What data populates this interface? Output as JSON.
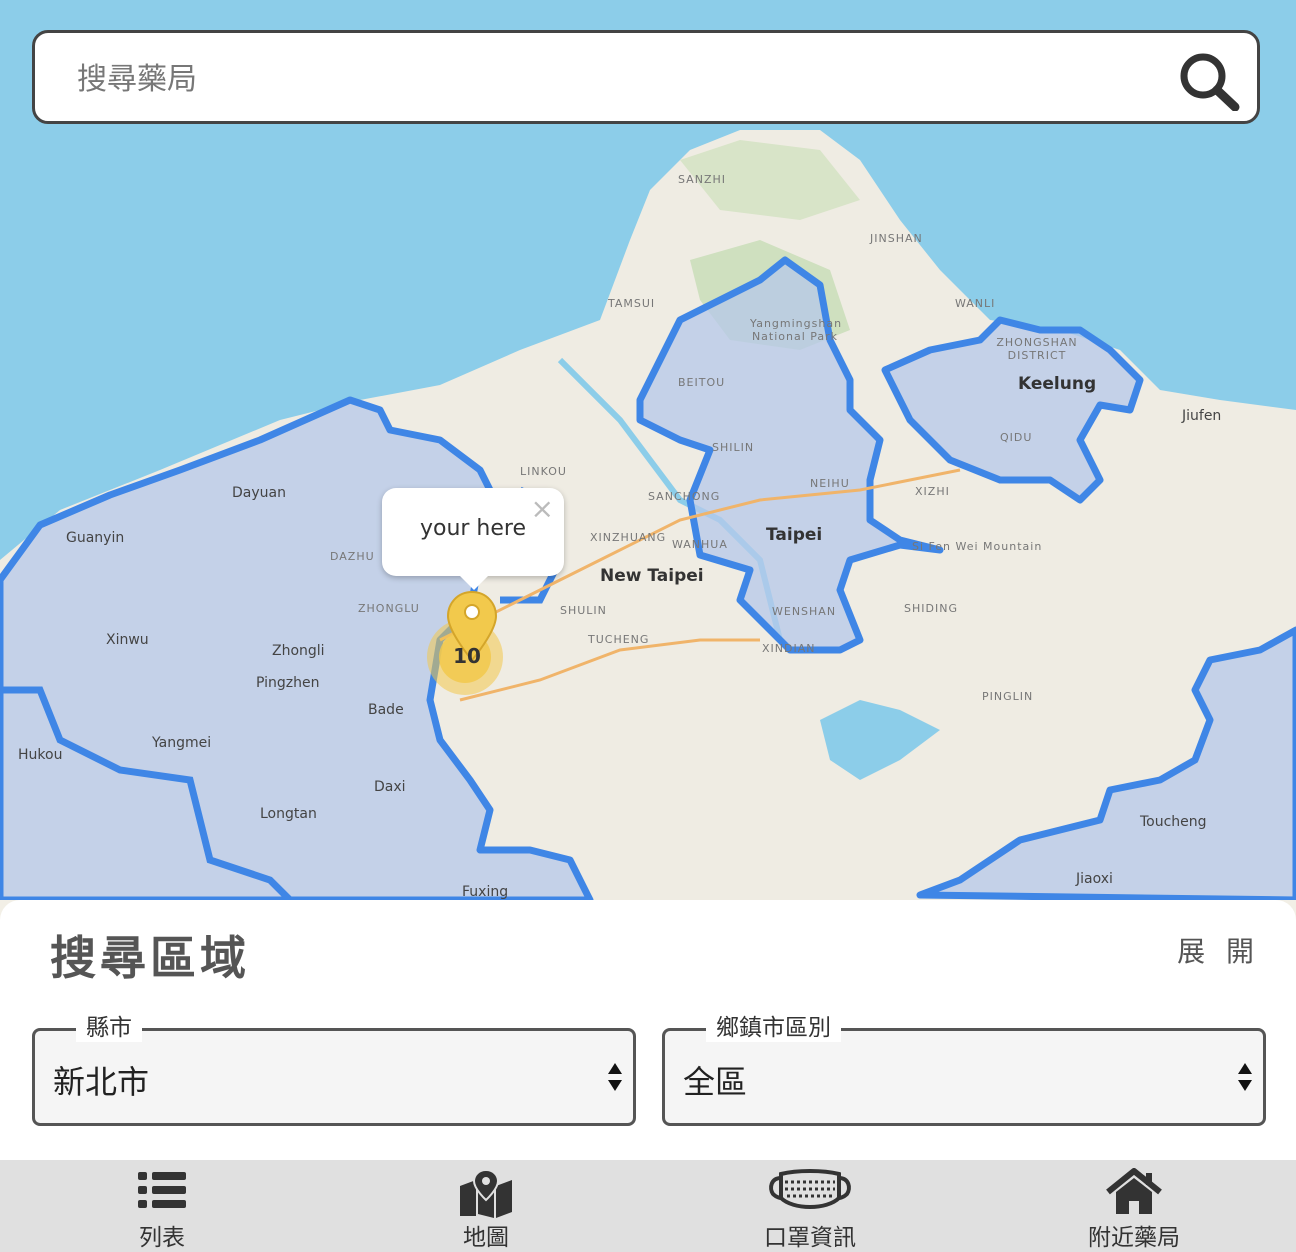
{
  "search": {
    "placeholder": "搜尋藥局"
  },
  "map": {
    "popup_text": "your here",
    "cluster_count": "10",
    "labels": {
      "sanzhi": "SANZHI",
      "jinshan": "JINSHAN",
      "tamsui": "TAMSUI",
      "wanli": "WANLI",
      "beitou": "BEITOU",
      "shilin": "SHILIN",
      "neihu": "NEIHU",
      "sanchong": "SANCHONG",
      "keelung": "Keelung",
      "taipei": "Taipei",
      "new_taipei": "New Taipei",
      "dayuan": "Dayuan",
      "guanyin": "Guanyin",
      "zhongli": "Zhongli",
      "pingzhen": "Pingzhen",
      "bade": "Bade",
      "yangmei": "Yangmei",
      "xinwu": "Xinwu",
      "hukou": "Hukou",
      "daxi": "Daxi",
      "longtan": "Longtan",
      "fuxing": "Fuxing",
      "linkou": "LINKOU",
      "dazhu": "DAZHU",
      "zhonglu": "ZHONGLU",
      "shulin": "SHULIN",
      "tucheng": "TUCHENG",
      "xindian": "XINDIAN",
      "wenshan": "WENSHAN",
      "shiding": "SHIDING",
      "pinglin": "PINGLIN",
      "xizhi": "XIZHI",
      "qidu": "QIDU",
      "jiufen": "Jiufen",
      "toucheng": "Toucheng",
      "jiaoxi": "Jiaoxi",
      "wanhua": "WANHUA",
      "xinzhuang": "XINZHUANG",
      "yangmingshan": "Yangmingshan National Park",
      "zhongshan_district": "ZHONGSHAN DISTRICT",
      "shifen": "Si Fen Wei Mountain"
    }
  },
  "panel": {
    "title": "搜尋區域",
    "toggle_label": "展 開",
    "county": {
      "legend": "縣市",
      "value": "新北市"
    },
    "district": {
      "legend": "鄉鎮市區別",
      "value": "全區"
    }
  },
  "nav": {
    "list": "列表",
    "map": "地圖",
    "mask_info": "口罩資訊",
    "nearby": "附近藥局"
  },
  "colors": {
    "water": "#8ccde9",
    "land": "#efece3",
    "region_border": "#3f86e6",
    "region_fill": "#b6c8ea",
    "pin": "#f2c94c"
  }
}
